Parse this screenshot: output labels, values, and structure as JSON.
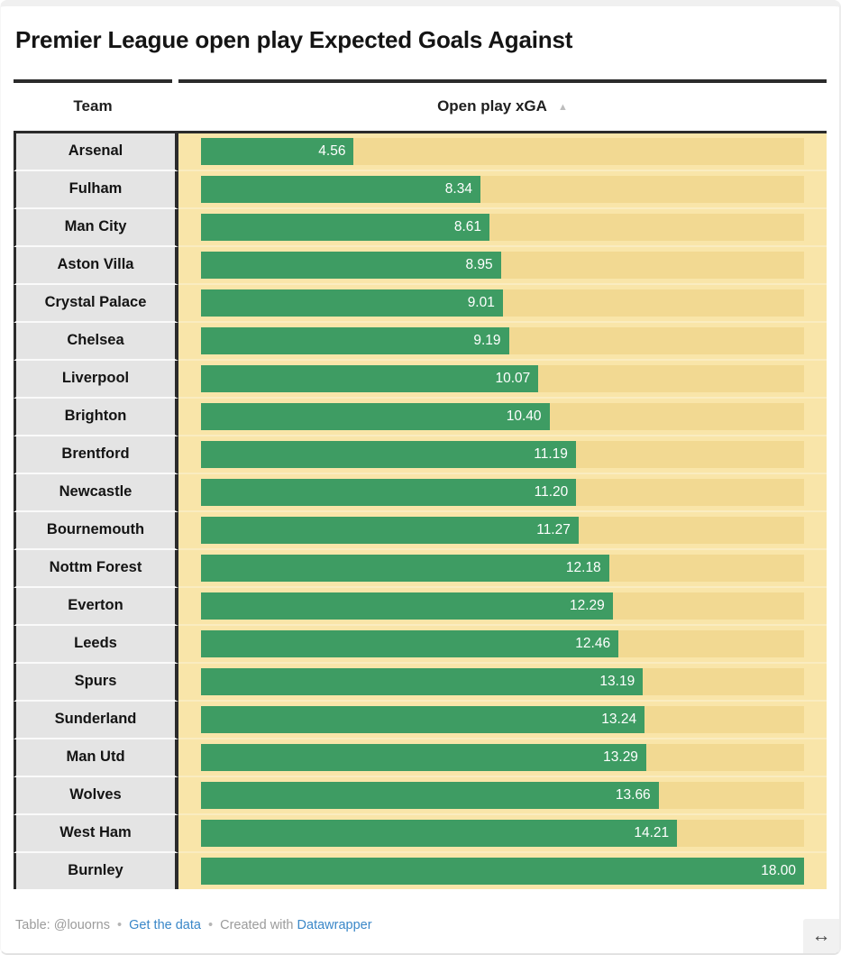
{
  "title": "Premier League open play Expected Goals Against",
  "columns": {
    "team": "Team",
    "value": "Open play xGA",
    "sort_indicator": "▲"
  },
  "chart_data": {
    "type": "bar",
    "orientation": "horizontal",
    "title": "Premier League open play Expected Goals Against",
    "category_label": "Team",
    "value_label": "Open play xGA",
    "categories": [
      "Arsenal",
      "Fulham",
      "Man City",
      "Aston Villa",
      "Crystal Palace",
      "Chelsea",
      "Liverpool",
      "Brighton",
      "Brentford",
      "Newcastle",
      "Bournemouth",
      "Nottm Forest",
      "Everton",
      "Leeds",
      "Spurs",
      "Sunderland",
      "Man Utd",
      "Wolves",
      "West Ham",
      "Burnley"
    ],
    "values": [
      4.56,
      8.34,
      8.61,
      8.95,
      9.01,
      9.19,
      10.07,
      10.4,
      11.19,
      11.2,
      11.27,
      12.18,
      12.29,
      12.46,
      13.19,
      13.24,
      13.29,
      13.66,
      14.21,
      18.0
    ],
    "xlim": [
      0,
      18
    ],
    "sort": "ascending",
    "value_format": "2-decimals",
    "legend": "none",
    "grid": "off"
  },
  "footer": {
    "prefix": "Table: @louorns",
    "separator": "•",
    "get_data_link": "Get the data",
    "created_with": "Created with",
    "datawrapper_link": "Datawrapper"
  },
  "icons": {
    "sort_ascending": "▲",
    "resize": "↔"
  },
  "colors": {
    "bar": "#3E9C63",
    "bar_track": "#F2D992",
    "bar_cell_bg": "#F9E5A9",
    "team_cell_bg": "#E4E4E4",
    "table_border": "#2B2B2B",
    "link": "#3A87C8",
    "value_label": "#FFFFFF"
  }
}
